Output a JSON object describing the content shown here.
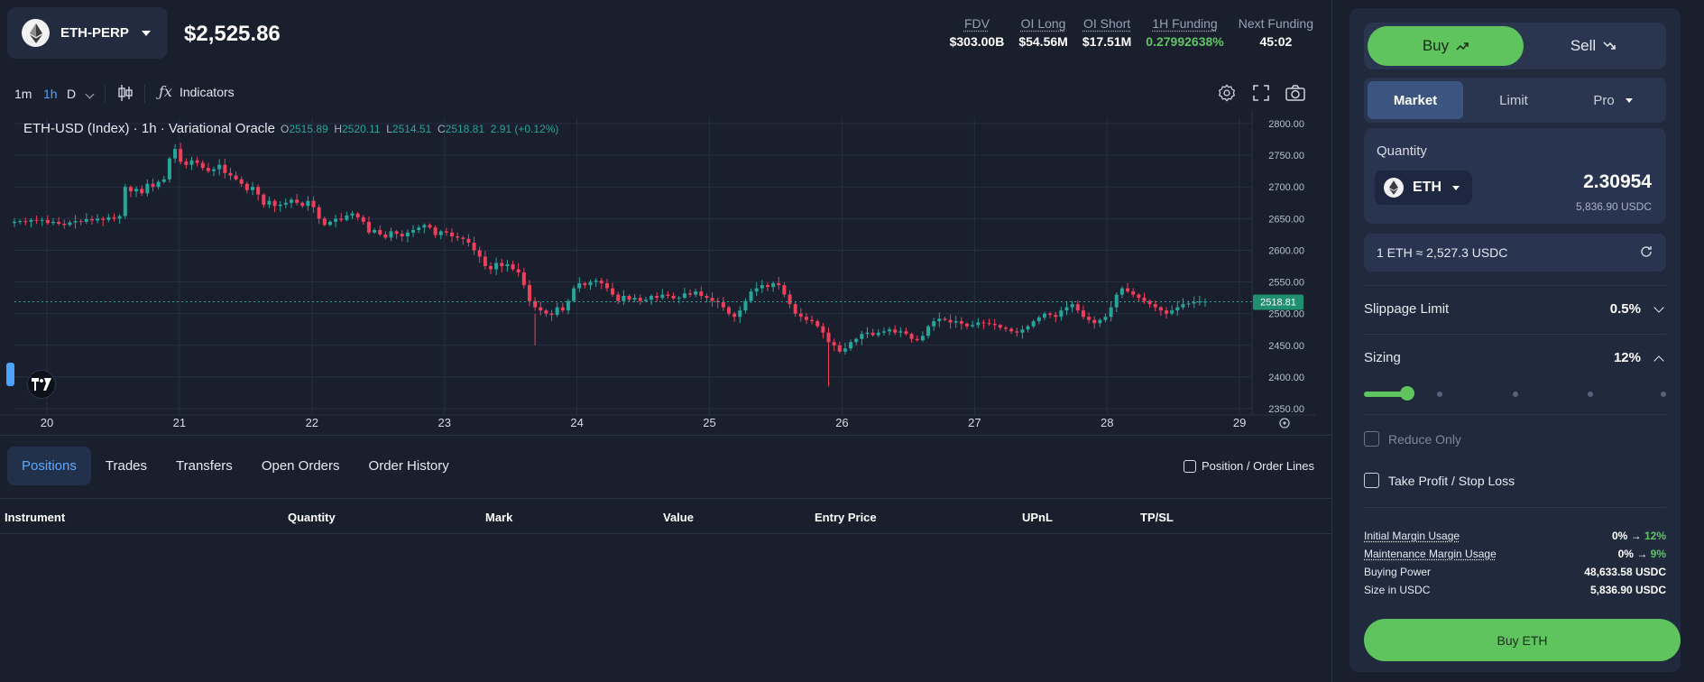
{
  "market": {
    "symbol": "ETH-PERP",
    "price": "$2,525.86",
    "icon": "ethereum-icon"
  },
  "stats": [
    {
      "label": "FDV",
      "value": "$303.00B",
      "dotted": true,
      "color": ""
    },
    {
      "label": "OI Long",
      "value": "$54.56M",
      "dotted": true,
      "color": ""
    },
    {
      "label": "OI Short",
      "value": "$17.51M",
      "dotted": true,
      "color": ""
    },
    {
      "label": "1H Funding",
      "value": "0.27992638%",
      "dotted": true,
      "color": "#5fc464"
    },
    {
      "label": "Next Funding",
      "value": "45:02",
      "dotted": false,
      "color": ""
    }
  ],
  "toolbar": {
    "timeframes": [
      "1m",
      "1h",
      "D"
    ],
    "active_timeframe": "1h",
    "indicators_label": "Indicators"
  },
  "chart": {
    "title": "ETH-USD (Index) · 1h · Variational Oracle",
    "ohlc": {
      "o": "2515.89",
      "h": "2520.11",
      "l": "2514.51",
      "c": "2518.81",
      "change": "2.91 (+0.12%)"
    },
    "last_price_tag": "2518.81",
    "up_color": "#26a69a",
    "down_color": "#ef3f5a"
  },
  "chart_data": {
    "type": "candlestick",
    "x_ticks": [
      "20",
      "21",
      "22",
      "23",
      "24",
      "25",
      "26",
      "27",
      "28",
      "29"
    ],
    "y_ticks": [
      2350,
      2400,
      2450,
      2500,
      2550,
      2600,
      2650,
      2700,
      2750,
      2800
    ],
    "ylim": [
      2340,
      2810
    ],
    "last_price": 2518.81,
    "close_path_hourly": [
      2645,
      2646,
      2645,
      2648,
      2647,
      2648,
      2643,
      2645,
      2642,
      2640,
      2644,
      2646,
      2645,
      2649,
      2647,
      2650,
      2648,
      2652,
      2650,
      2654,
      2700,
      2693,
      2697,
      2690,
      2705,
      2700,
      2708,
      2712,
      2745,
      2760,
      2740,
      2735,
      2742,
      2738,
      2730,
      2725,
      2728,
      2735,
      2722,
      2718,
      2712,
      2705,
      2695,
      2700,
      2688,
      2672,
      2678,
      2670,
      2672,
      2675,
      2680,
      2675,
      2670,
      2678,
      2668,
      2650,
      2640,
      2645,
      2650,
      2648,
      2655,
      2658,
      2652,
      2645,
      2628,
      2632,
      2625,
      2620,
      2630,
      2626,
      2622,
      2628,
      2632,
      2636,
      2640,
      2636,
      2624,
      2630,
      2628,
      2622,
      2620,
      2618,
      2612,
      2600,
      2590,
      2575,
      2570,
      2580,
      2575,
      2578,
      2570,
      2565,
      2545,
      2520,
      2510,
      2505,
      2500,
      2498,
      2510,
      2505,
      2520,
      2540,
      2548,
      2545,
      2550,
      2552,
      2548,
      2540,
      2530,
      2520,
      2528,
      2522,
      2525,
      2520,
      2522,
      2528,
      2525,
      2530,
      2528,
      2524,
      2525,
      2532,
      2530,
      2535,
      2528,
      2525,
      2520,
      2518,
      2510,
      2500,
      2495,
      2505,
      2520,
      2535,
      2540,
      2545,
      2542,
      2548,
      2545,
      2530,
      2515,
      2500,
      2495,
      2490,
      2488,
      2480,
      2470,
      2455,
      2450,
      2440,
      2445,
      2455,
      2460,
      2468,
      2470,
      2466,
      2470,
      2472,
      2475,
      2470,
      2472,
      2468,
      2460,
      2458,
      2465,
      2480,
      2488,
      2492,
      2490,
      2486,
      2488,
      2484,
      2480,
      2482,
      2486,
      2485,
      2484,
      2482,
      2478,
      2476,
      2472,
      2470,
      2475,
      2480,
      2488,
      2494,
      2500,
      2498,
      2495,
      2505,
      2510,
      2515,
      2505,
      2495,
      2490,
      2485,
      2490,
      2495,
      2510,
      2530,
      2540,
      2535,
      2530,
      2525,
      2520,
      2515,
      2510,
      2505,
      2500,
      2505,
      2510,
      2515,
      2516,
      2518,
      2519,
      2519
    ]
  },
  "bottom": {
    "tabs": [
      "Positions",
      "Trades",
      "Transfers",
      "Open Orders",
      "Order History"
    ],
    "active_tab": "Positions",
    "position_lines_label": "Position / Order Lines",
    "columns": [
      "Instrument",
      "Quantity",
      "Mark",
      "Value",
      "Entry Price",
      "UPnL",
      "TP/SL"
    ]
  },
  "order": {
    "buy_label": "Buy",
    "sell_label": "Sell",
    "types": [
      "Market",
      "Limit",
      "Pro"
    ],
    "active_type": "Market",
    "quantity_label": "Quantity",
    "asset": "ETH",
    "quantity_value": "2.30954",
    "quantity_usdc": "5,836.90 USDC",
    "rate": "1 ETH ≈ 2,527.3 USDC",
    "slippage_label": "Slippage Limit",
    "slippage_value": "0.5%",
    "sizing_label": "Sizing",
    "sizing_value": "12%",
    "sizing_fraction": 0.12,
    "reduce_only_label": "Reduce Only",
    "tpsl_label": "Take Profit / Stop Loss",
    "info": {
      "initial_margin_label": "Initial Margin Usage",
      "initial_margin_from": "0%",
      "initial_margin_to": "12%",
      "maintenance_margin_label": "Maintenance Margin Usage",
      "maintenance_margin_from": "0%",
      "maintenance_margin_to": "9%",
      "buying_power_label": "Buying Power",
      "buying_power_value": "48,633.58 USDC",
      "size_label": "Size in USDC",
      "size_value": "5,836.90 USDC"
    },
    "cta_label": "Buy ETH",
    "accent": "#5fc35e"
  }
}
